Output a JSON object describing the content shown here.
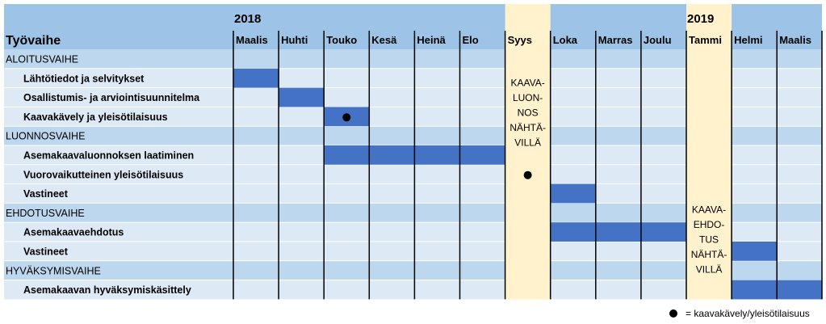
{
  "years": [
    "2018",
    "2019"
  ],
  "header_label": "Työvaihe",
  "months": [
    "Maalis",
    "Huhti",
    "Touko",
    "Kesä",
    "Heinä",
    "Elo",
    "Syys",
    "Loka",
    "Marras",
    "Joulu",
    "Tammi",
    "Helmi",
    "Maalis"
  ],
  "rows": [
    {
      "label": "ALOITUSVAIHE",
      "type": "phase"
    },
    {
      "label": "Lähtötiedot ja selvitykset",
      "type": "task",
      "bars": [
        [
          0,
          1
        ]
      ]
    },
    {
      "label": "Osallistumis- ja arviointisuunnitelma",
      "type": "task",
      "bars": [
        [
          1,
          2
        ]
      ]
    },
    {
      "label": "Kaavakävely ja yleisötilaisuus",
      "type": "task",
      "bars": [
        [
          2,
          3
        ]
      ],
      "dot": 2.5
    },
    {
      "label": "LUONNOSVAIHE",
      "type": "phase"
    },
    {
      "label": "Asemakaavaluonnoksen laatiminen",
      "type": "task",
      "bars": [
        [
          2,
          6
        ]
      ]
    },
    {
      "label": "Vuorovaikutteinen yleisötilaisuus",
      "type": "task",
      "bars": [],
      "dot": 6.5
    },
    {
      "label": "Vastineet",
      "type": "task",
      "bars": [
        [
          7,
          8
        ]
      ]
    },
    {
      "label": "EHDOTUSVAIHE",
      "type": "phase"
    },
    {
      "label": "Asemakaavaehdotus",
      "type": "task",
      "bars": [
        [
          7,
          10
        ]
      ]
    },
    {
      "label": "Vastineet",
      "type": "task",
      "bars": [
        [
          11,
          12
        ]
      ]
    },
    {
      "label": "HYVÄKSYMISVAIHE",
      "type": "phase"
    },
    {
      "label": "Asemakaavan hyväksymiskäsittely",
      "type": "task",
      "bars": [
        [
          11,
          13
        ]
      ]
    }
  ],
  "highlight_columns": [
    {
      "col": 6,
      "lines": [
        "KAAVA-",
        "LUON-",
        "NOS",
        "NÄHTÄ-",
        "VILLÄ"
      ]
    },
    {
      "col": 10,
      "lines": [
        "KAAVA-",
        "EHDO-",
        "TUS",
        "NÄHTÄ-",
        "VILLÄ"
      ]
    }
  ],
  "legend": {
    "text": "= kaavakävely/yleisötilaisuus"
  },
  "colors": {
    "header": "#9dc3e6",
    "phase": "#bdd7ee",
    "task": "#dde9f5",
    "bar": "#4472c4",
    "highlight": "#fff2cc",
    "grid": "#000000"
  }
}
